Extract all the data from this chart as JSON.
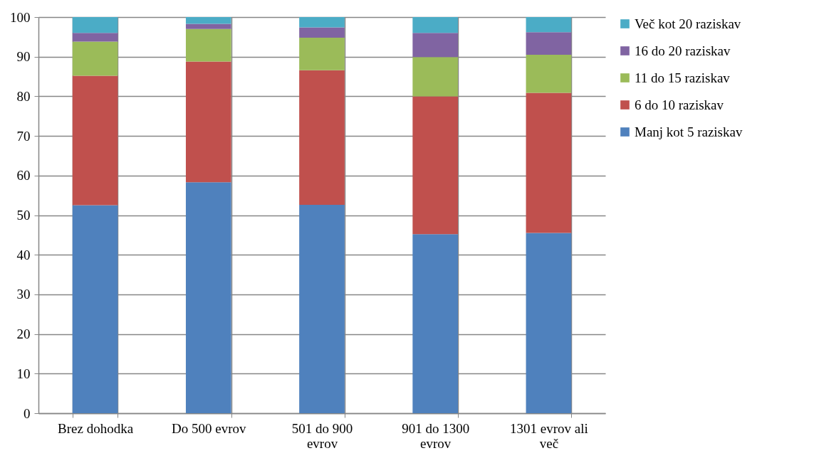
{
  "chart_data": {
    "type": "bar",
    "stacked": true,
    "categories": [
      "Brez dohodka",
      "Do 500 evrov",
      "501 do 900 evrov",
      "901 do 1300 evrov",
      "1301 evrov ali več"
    ],
    "series": [
      {
        "name": "Manj kot 5 raziskav",
        "color": "#4f81bd",
        "values": [
          52.5,
          58.3,
          52.6,
          45.2,
          45.5
        ]
      },
      {
        "name": "6 do 10 raziskav",
        "color": "#c0504d",
        "values": [
          32.7,
          30.5,
          34.0,
          34.8,
          35.4
        ]
      },
      {
        "name": "11 do 15 raziskav",
        "color": "#9bbb59",
        "values": [
          8.6,
          8.2,
          8.2,
          9.9,
          9.6
        ]
      },
      {
        "name": "16 do 20 raziskav",
        "color": "#8064a2",
        "values": [
          2.2,
          1.3,
          2.6,
          6.1,
          5.7
        ]
      },
      {
        "name": "Več kot 20 raziskav",
        "color": "#4bacc6",
        "values": [
          4.0,
          1.7,
          2.6,
          4.0,
          3.8
        ]
      }
    ],
    "ylim": [
      0,
      100
    ],
    "yticks": [
      0,
      10,
      20,
      30,
      40,
      50,
      60,
      70,
      80,
      90,
      100
    ],
    "grid": true,
    "legend": "right"
  }
}
